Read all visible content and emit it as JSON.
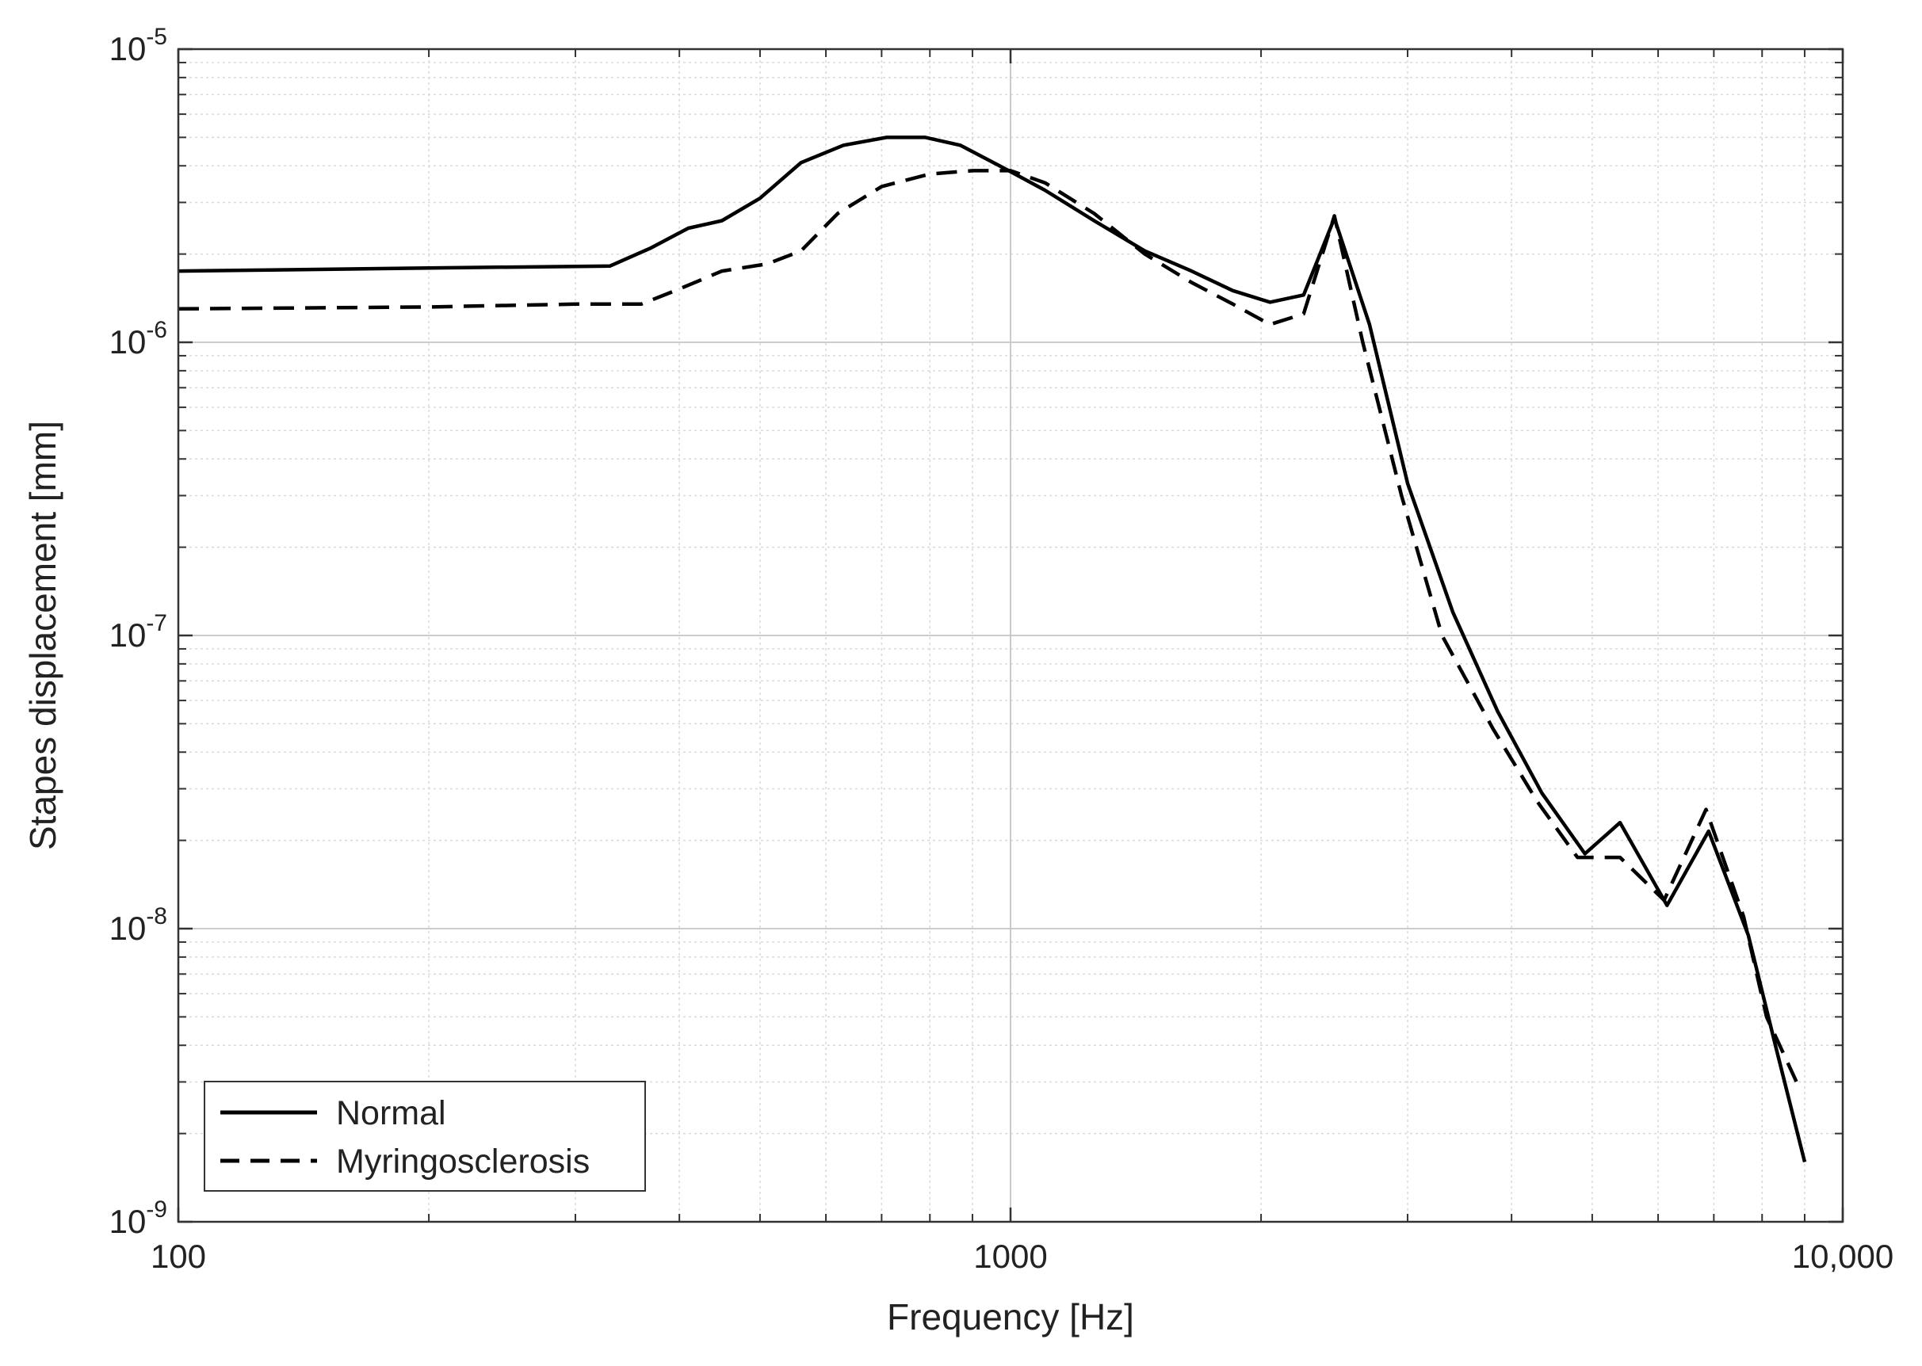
{
  "chart_data": {
    "type": "line",
    "title": "",
    "xlabel": "Frequency [Hz]",
    "ylabel": "Stapes displacement [mm]",
    "x_scale": "log",
    "y_scale": "log",
    "xlim": [
      100,
      10000
    ],
    "ylim": [
      1e-09,
      1e-05
    ],
    "grid": true,
    "minor_grid": true,
    "legend_position": "bottom-left",
    "x_ticks": [
      {
        "value": 100,
        "label": "100"
      },
      {
        "value": 1000,
        "label": "1000"
      },
      {
        "value": 10000,
        "label": "10,000"
      }
    ],
    "y_ticks": [
      {
        "value": 1e-09,
        "base": "10",
        "exp": "-9"
      },
      {
        "value": 1e-08,
        "base": "10",
        "exp": "-8"
      },
      {
        "value": 1e-07,
        "base": "10",
        "exp": "-7"
      },
      {
        "value": 1e-06,
        "base": "10",
        "exp": "-6"
      },
      {
        "value": 1e-05,
        "base": "10",
        "exp": "-5"
      }
    ],
    "series": [
      {
        "name": "Normal",
        "style": "solid",
        "color": "#000000",
        "points": [
          [
            100,
            1.75e-06
          ],
          [
            230,
            1.8e-06
          ],
          [
            330,
            1.82e-06
          ],
          [
            370,
            2.1e-06
          ],
          [
            410,
            2.45e-06
          ],
          [
            450,
            2.6e-06
          ],
          [
            500,
            3.1e-06
          ],
          [
            560,
            4.1e-06
          ],
          [
            630,
            4.7e-06
          ],
          [
            710,
            5e-06
          ],
          [
            790,
            5e-06
          ],
          [
            870,
            4.7e-06
          ],
          [
            970,
            4e-06
          ],
          [
            1100,
            3.3e-06
          ],
          [
            1260,
            2.6e-06
          ],
          [
            1450,
            2.05e-06
          ],
          [
            1650,
            1.75e-06
          ],
          [
            1850,
            1.5e-06
          ],
          [
            2050,
            1.37e-06
          ],
          [
            2250,
            1.45e-06
          ],
          [
            2450,
            2.65e-06
          ],
          [
            2700,
            1.15e-06
          ],
          [
            3000,
            3.3e-07
          ],
          [
            3400,
            1.2e-07
          ],
          [
            3850,
            5.5e-08
          ],
          [
            4350,
            2.9e-08
          ],
          [
            4900,
            1.8e-08
          ],
          [
            5400,
            2.3e-08
          ],
          [
            6150,
            1.2e-08
          ],
          [
            6900,
            2.15e-08
          ],
          [
            7700,
            9.5e-09
          ],
          [
            8300,
            4e-09
          ],
          [
            9000,
            1.6e-09
          ]
        ]
      },
      {
        "name": "Myringosclerosis",
        "style": "dashed",
        "color": "#000000",
        "points": [
          [
            100,
            1.3e-06
          ],
          [
            200,
            1.32e-06
          ],
          [
            300,
            1.35e-06
          ],
          [
            360,
            1.35e-06
          ],
          [
            400,
            1.52e-06
          ],
          [
            450,
            1.75e-06
          ],
          [
            510,
            1.85e-06
          ],
          [
            560,
            2.05e-06
          ],
          [
            620,
            2.75e-06
          ],
          [
            700,
            3.4e-06
          ],
          [
            800,
            3.75e-06
          ],
          [
            900,
            3.85e-06
          ],
          [
            1000,
            3.85e-06
          ],
          [
            1100,
            3.5e-06
          ],
          [
            1260,
            2.75e-06
          ],
          [
            1450,
            2e-06
          ],
          [
            1650,
            1.6e-06
          ],
          [
            1850,
            1.35e-06
          ],
          [
            2050,
            1.15e-06
          ],
          [
            2250,
            1.25e-06
          ],
          [
            2450,
            2.7e-06
          ],
          [
            2650,
            1e-06
          ],
          [
            2950,
            3e-07
          ],
          [
            3300,
            1e-07
          ],
          [
            3800,
            4.8e-08
          ],
          [
            4300,
            2.7e-08
          ],
          [
            4800,
            1.75e-08
          ],
          [
            5400,
            1.75e-08
          ],
          [
            6100,
            1.25e-08
          ],
          [
            6850,
            2.55e-08
          ],
          [
            7600,
            1.1e-08
          ],
          [
            8100,
            5e-09
          ],
          [
            8800,
            3e-09
          ]
        ]
      }
    ]
  }
}
